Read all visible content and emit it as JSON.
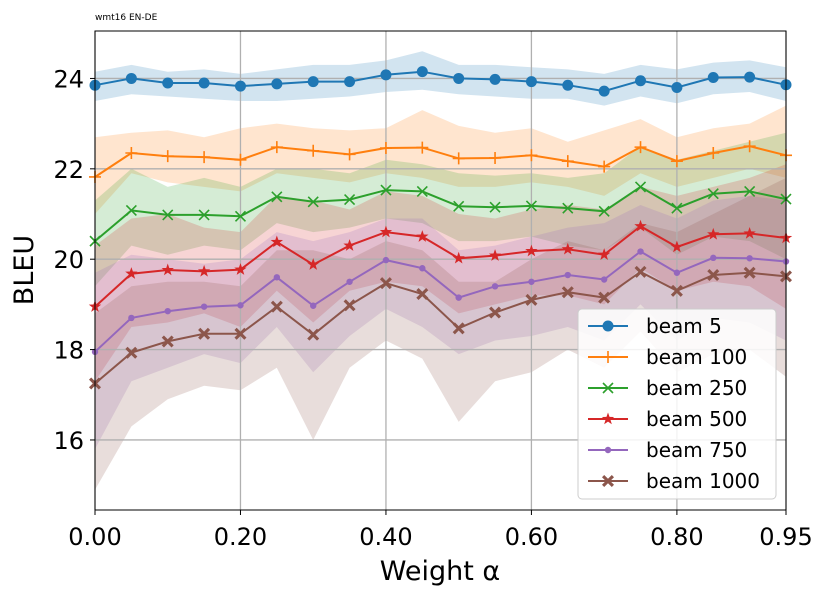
{
  "chart_data": {
    "type": "line",
    "title": "wmt16 EN-DE",
    "xlabel": "Weight α",
    "ylabel": "BLEU",
    "xlim": [
      0.0,
      0.95
    ],
    "ylim": [
      14.45,
      25.05
    ],
    "grid": true,
    "legend_position": "bottom-right",
    "x": [
      0.0,
      0.05,
      0.1,
      0.15,
      0.2,
      0.25,
      0.3,
      0.35,
      0.4,
      0.45,
      0.5,
      0.55,
      0.6,
      0.65,
      0.7,
      0.75,
      0.8,
      0.85,
      0.9,
      0.95
    ],
    "xticks": [
      0.0,
      0.2,
      0.4,
      0.6,
      0.8,
      0.95
    ],
    "xtick_labels": [
      "0.00",
      "0.20",
      "0.40",
      "0.60",
      "0.80",
      "0.95"
    ],
    "yticks": [
      16,
      18,
      20,
      22,
      24
    ],
    "ytick_labels": [
      "16",
      "18",
      "20",
      "22",
      "24"
    ],
    "series": [
      {
        "name": "beam 5",
        "color": "#1f77b4",
        "marker": "circle",
        "values": [
          23.85,
          24.0,
          23.9,
          23.9,
          23.83,
          23.88,
          23.93,
          23.93,
          24.08,
          24.15,
          24.0,
          23.98,
          23.93,
          23.85,
          23.72,
          23.95,
          23.8,
          24.02,
          24.03,
          23.86
        ],
        "upper": [
          24.15,
          24.3,
          24.15,
          24.2,
          24.1,
          24.2,
          24.3,
          24.3,
          24.4,
          24.6,
          24.3,
          24.3,
          24.25,
          24.2,
          24.1,
          24.3,
          24.2,
          24.35,
          24.4,
          24.25
        ],
        "lower": [
          23.5,
          23.65,
          23.6,
          23.55,
          23.5,
          23.5,
          23.55,
          23.6,
          23.7,
          23.75,
          23.65,
          23.6,
          23.55,
          23.55,
          23.4,
          23.6,
          23.45,
          23.65,
          23.7,
          23.5
        ]
      },
      {
        "name": "beam 100",
        "color": "#ff7f0e",
        "marker": "plus",
        "values": [
          21.82,
          22.35,
          22.28,
          22.26,
          22.2,
          22.48,
          22.4,
          22.32,
          22.46,
          22.47,
          22.23,
          22.24,
          22.3,
          22.17,
          22.05,
          22.48,
          22.17,
          22.35,
          22.5,
          22.3
        ],
        "upper": [
          22.7,
          22.8,
          22.85,
          22.7,
          22.9,
          23.0,
          22.9,
          22.85,
          22.9,
          23.3,
          22.95,
          22.8,
          22.9,
          22.6,
          22.85,
          23.1,
          22.7,
          22.9,
          23.0,
          23.4
        ],
        "lower": [
          21.0,
          21.9,
          21.7,
          21.6,
          21.5,
          21.9,
          21.8,
          21.7,
          21.9,
          21.8,
          21.6,
          21.6,
          21.7,
          21.6,
          21.4,
          21.9,
          21.6,
          21.8,
          22.0,
          21.8
        ]
      },
      {
        "name": "beam 250",
        "color": "#2ca02c",
        "marker": "x",
        "values": [
          20.4,
          21.08,
          20.98,
          20.98,
          20.95,
          21.38,
          21.27,
          21.32,
          21.53,
          21.5,
          21.17,
          21.15,
          21.18,
          21.13,
          21.06,
          21.6,
          21.13,
          21.45,
          21.5,
          21.33
        ],
        "upper": [
          21.3,
          22.0,
          21.6,
          21.8,
          21.6,
          22.0,
          22.0,
          21.9,
          22.2,
          22.1,
          21.9,
          21.85,
          21.9,
          21.8,
          21.9,
          22.5,
          22.2,
          22.4,
          22.6,
          22.8
        ],
        "lower": [
          19.4,
          20.3,
          20.1,
          20.3,
          20.2,
          20.8,
          20.6,
          20.7,
          20.9,
          20.8,
          20.4,
          20.4,
          20.5,
          20.3,
          20.2,
          20.7,
          20.1,
          20.5,
          20.4,
          20.0
        ]
      },
      {
        "name": "beam 500",
        "color": "#d62728",
        "marker": "star",
        "values": [
          18.95,
          19.68,
          19.76,
          19.73,
          19.77,
          20.38,
          19.88,
          20.3,
          20.6,
          20.5,
          20.02,
          20.08,
          20.18,
          20.22,
          20.1,
          20.73,
          20.27,
          20.55,
          20.57,
          20.47
        ],
        "upper": [
          20.3,
          20.9,
          21.0,
          20.7,
          20.6,
          21.4,
          21.3,
          21.1,
          21.5,
          21.4,
          21.0,
          20.9,
          21.1,
          21.2,
          21.1,
          21.6,
          21.4,
          21.6,
          21.8,
          22.1
        ],
        "lower": [
          17.3,
          18.5,
          18.6,
          18.8,
          18.5,
          19.3,
          18.6,
          19.3,
          19.5,
          19.4,
          18.8,
          19.0,
          19.2,
          19.2,
          19.0,
          19.8,
          19.3,
          19.5,
          19.4,
          18.9
        ]
      },
      {
        "name": "beam 750",
        "color": "#9467bd",
        "marker": "point",
        "values": [
          17.95,
          18.7,
          18.85,
          18.95,
          18.98,
          19.6,
          18.97,
          19.5,
          19.98,
          19.8,
          19.15,
          19.4,
          19.5,
          19.65,
          19.55,
          20.17,
          19.7,
          20.03,
          20.02,
          19.95
        ],
        "upper": [
          19.7,
          20.1,
          20.0,
          19.9,
          20.0,
          20.6,
          20.4,
          20.6,
          20.9,
          20.9,
          20.2,
          20.3,
          20.5,
          20.7,
          20.8,
          21.2,
          20.9,
          21.3,
          21.4,
          21.3
        ],
        "lower": [
          15.8,
          17.3,
          17.6,
          17.9,
          17.7,
          18.5,
          17.5,
          18.3,
          18.9,
          18.5,
          17.9,
          18.2,
          18.3,
          18.5,
          18.2,
          19.0,
          18.2,
          18.7,
          18.6,
          18.2
        ]
      },
      {
        "name": "beam 1000",
        "color": "#8c564b",
        "marker": "x-filled",
        "values": [
          17.25,
          17.93,
          18.18,
          18.35,
          18.35,
          18.95,
          18.33,
          18.98,
          19.47,
          19.23,
          18.47,
          18.82,
          19.1,
          19.27,
          19.15,
          19.72,
          19.3,
          19.65,
          19.7,
          19.62
        ],
        "upper": [
          18.8,
          19.4,
          19.5,
          19.5,
          19.4,
          20.2,
          20.2,
          20.0,
          20.4,
          20.2,
          19.5,
          19.5,
          20.0,
          20.4,
          20.2,
          20.8,
          20.6,
          21.0,
          21.4,
          21.8
        ],
        "lower": [
          14.9,
          16.3,
          16.9,
          17.2,
          17.1,
          17.6,
          16.0,
          17.6,
          18.2,
          17.8,
          16.4,
          17.3,
          17.5,
          18.0,
          17.6,
          18.4,
          17.5,
          17.9,
          18.0,
          17.4
        ]
      }
    ]
  }
}
